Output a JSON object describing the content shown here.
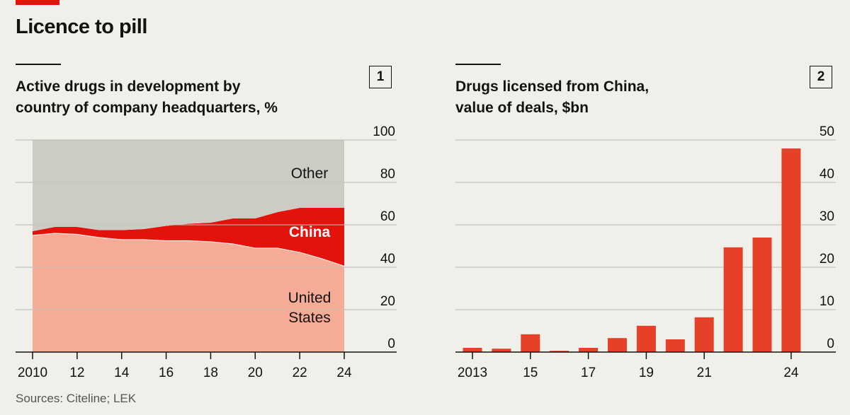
{
  "headline": "Licence to pill",
  "source": "Sources: Citeline; LEK",
  "colors": {
    "accent": "#e3120b",
    "usa": "#f6ab96",
    "china": "#e3120b",
    "other": "#cdccc4",
    "bar": "#e64128",
    "background": "#f0efea"
  },
  "chart_data": [
    {
      "type": "area",
      "stacked": true,
      "panel_number": "1",
      "title_lines": [
        "Active drugs in development by",
        "country of company headquarters, %"
      ],
      "x": [
        2010,
        2011,
        2012,
        2013,
        2014,
        2015,
        2016,
        2017,
        2018,
        2019,
        2020,
        2021,
        2022,
        2023,
        2024
      ],
      "x_ticks": [
        2010,
        2012,
        2014,
        2016,
        2018,
        2020,
        2022,
        2024
      ],
      "x_tick_labels": [
        "2010",
        "12",
        "14",
        "16",
        "18",
        "20",
        "22",
        "24"
      ],
      "ylim": [
        0,
        100
      ],
      "y_ticks": [
        0,
        20,
        40,
        60,
        80,
        100
      ],
      "y_tick_labels": [
        "0",
        "20",
        "40",
        "60",
        "80",
        "100"
      ],
      "series": [
        {
          "name": "United States",
          "label_lines": [
            "United",
            "States"
          ],
          "values": [
            55,
            56,
            55.5,
            54,
            53,
            53,
            52.5,
            52.5,
            52,
            51,
            49,
            49,
            47,
            44,
            40.5
          ]
        },
        {
          "name": "China",
          "label_lines": [
            "China"
          ],
          "values": [
            2,
            3,
            3.5,
            3.5,
            4.5,
            5,
            7,
            8,
            9,
            12,
            14,
            17,
            21,
            24,
            27.5
          ]
        },
        {
          "name": "Other",
          "label_lines": [
            "Other"
          ],
          "values": [
            43,
            41,
            41,
            42.5,
            42.5,
            42,
            40.5,
            39.5,
            39,
            37,
            37,
            34,
            32,
            32,
            32
          ]
        }
      ]
    },
    {
      "type": "bar",
      "panel_number": "2",
      "title_lines": [
        "Drugs licensed from China,",
        "value of deals, $bn"
      ],
      "categories": [
        2013,
        2014,
        2015,
        2016,
        2017,
        2018,
        2019,
        2020,
        2021,
        2022,
        2023,
        2024
      ],
      "values": [
        1.0,
        0.8,
        4.2,
        0.3,
        1.0,
        3.3,
        6.2,
        3.0,
        8.2,
        24.7,
        27.0,
        48.0
      ],
      "x_ticks": [
        2013,
        2015,
        2017,
        2019,
        2021,
        2024
      ],
      "x_tick_labels": [
        "2013",
        "15",
        "17",
        "19",
        "21",
        "24"
      ],
      "ylim": [
        0,
        50
      ],
      "y_ticks": [
        0,
        10,
        20,
        30,
        40,
        50
      ],
      "y_tick_labels": [
        "0",
        "10",
        "20",
        "30",
        "40",
        "50"
      ]
    }
  ]
}
